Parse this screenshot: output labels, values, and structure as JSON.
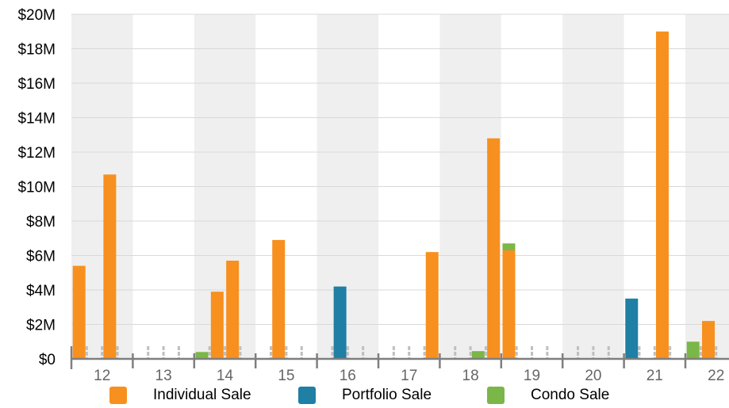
{
  "chart_data": {
    "type": "bar",
    "stacked": true,
    "categories": [
      "12",
      "13",
      "14",
      "15",
      "16",
      "17",
      "18",
      "19",
      "20",
      "21",
      "22"
    ],
    "ylim": [
      0,
      20
    ],
    "y_ticks": [
      {
        "value": 0,
        "label": "$0"
      },
      {
        "value": 2,
        "label": "$2M"
      },
      {
        "value": 4,
        "label": "$4M"
      },
      {
        "value": 6,
        "label": "$6M"
      },
      {
        "value": 8,
        "label": "$8M"
      },
      {
        "value": 10,
        "label": "$10M"
      },
      {
        "value": 12,
        "label": "$12M"
      },
      {
        "value": 14,
        "label": "$14M"
      },
      {
        "value": 16,
        "label": "$16M"
      },
      {
        "value": 18,
        "label": "$18M"
      },
      {
        "value": 20,
        "label": "$20M"
      }
    ],
    "periods_per_category": 4,
    "grid": true,
    "alternating_category_bands": true,
    "legend_position": "bottom",
    "series": [
      {
        "name": "Individual Sale",
        "color": "#F7901E",
        "points": [
          {
            "period": 0.5,
            "value": 5.4
          },
          {
            "period": 2.5,
            "value": 10.7
          },
          {
            "period": 9.5,
            "value": 3.9
          },
          {
            "period": 10.5,
            "value": 5.7
          },
          {
            "period": 13.5,
            "value": 6.9
          },
          {
            "period": 23.5,
            "value": 6.2
          },
          {
            "period": 27.5,
            "value": 12.8
          },
          {
            "period": 28.5,
            "value": 6.3
          },
          {
            "period": 38.5,
            "value": 19.0
          },
          {
            "period": 41.5,
            "value": 2.2
          }
        ]
      },
      {
        "name": "Portfolio Sale",
        "color": "#1F7FA4",
        "points": [
          {
            "period": 17.5,
            "value": 4.2
          },
          {
            "period": 36.5,
            "value": 3.5
          }
        ]
      },
      {
        "name": "Condo Sale",
        "color": "#7AB648",
        "points": [
          {
            "period": 8.5,
            "value": 0.4
          },
          {
            "period": 26.5,
            "value": 0.45
          },
          {
            "period": 28.5,
            "value": 0.4
          },
          {
            "period": 40.5,
            "value": 1.0
          }
        ]
      }
    ]
  },
  "colors": {
    "band": "#EFEFEF",
    "gridline": "#D9D9D9",
    "axis": "#7F7F7F",
    "minor_tick": "#BFBFBF",
    "label": "#000000",
    "category_label": "#666666"
  }
}
